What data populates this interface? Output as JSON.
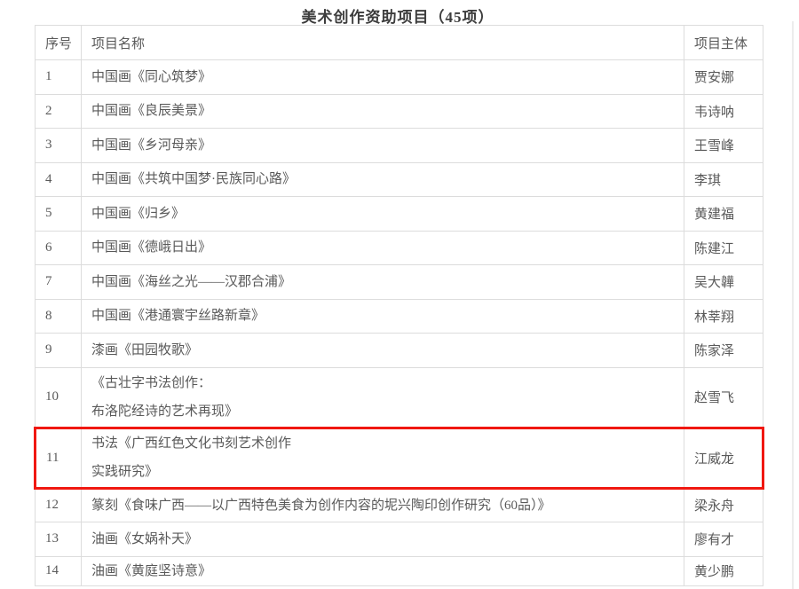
{
  "page": {
    "title": "美术创作资助项目（45项）"
  },
  "table": {
    "columns": [
      "序号",
      "项目名称",
      "项目主体"
    ],
    "rows": [
      {
        "num": "1",
        "lines": [
          "中国画《同心筑梦》"
        ],
        "owner": "贾安娜",
        "highlighted": false
      },
      {
        "num": "2",
        "lines": [
          "中国画《良辰美景》"
        ],
        "owner": "韦诗呐",
        "highlighted": false
      },
      {
        "num": "3",
        "lines": [
          "中国画《乡河母亲》"
        ],
        "owner": "王雪峰",
        "highlighted": false
      },
      {
        "num": "4",
        "lines": [
          "中国画《共筑中国梦·民族同心路》"
        ],
        "owner": "李琪",
        "highlighted": false
      },
      {
        "num": "5",
        "lines": [
          "中国画《归乡》"
        ],
        "owner": "黄建福",
        "highlighted": false
      },
      {
        "num": "6",
        "lines": [
          "中国画《德峨日出》"
        ],
        "owner": "陈建江",
        "highlighted": false
      },
      {
        "num": "7",
        "lines": [
          "中国画《海丝之光——汉郡合浦》"
        ],
        "owner": "吴大韡",
        "highlighted": false
      },
      {
        "num": "8",
        "lines": [
          "中国画《港通寰宇丝路新章》"
        ],
        "owner": "林莘翔",
        "highlighted": false
      },
      {
        "num": "9",
        "lines": [
          "漆画《田园牧歌》"
        ],
        "owner": "陈家泽",
        "highlighted": false
      },
      {
        "num": "10",
        "lines": [
          "《古壮字书法创作：",
          "布洛陀经诗的艺术再现》"
        ],
        "owner": "赵雪飞",
        "highlighted": false
      },
      {
        "num": "11",
        "lines": [
          "书法《广西红色文化书刻艺术创作",
          "实践研究》"
        ],
        "owner": "江威龙",
        "highlighted": true
      },
      {
        "num": "12",
        "lines": [
          "篆刻《食味广西——以广西特色美食为创作内容的坭兴陶印创作研究（60品）》"
        ],
        "owner": "梁永舟",
        "highlighted": false
      },
      {
        "num": "13",
        "lines": [
          "油画《女娲补天》"
        ],
        "owner": "廖有才",
        "highlighted": false
      },
      {
        "num": "14",
        "lines": [
          "油画《黄庭坚诗意》"
        ],
        "owner": "黄少鹏",
        "highlighted": false
      }
    ]
  },
  "colors": {
    "highlight_box": "#f01811",
    "table_border": "#dcdcdc",
    "body_text": "#595959",
    "title_text": "#3d3d3d"
  }
}
